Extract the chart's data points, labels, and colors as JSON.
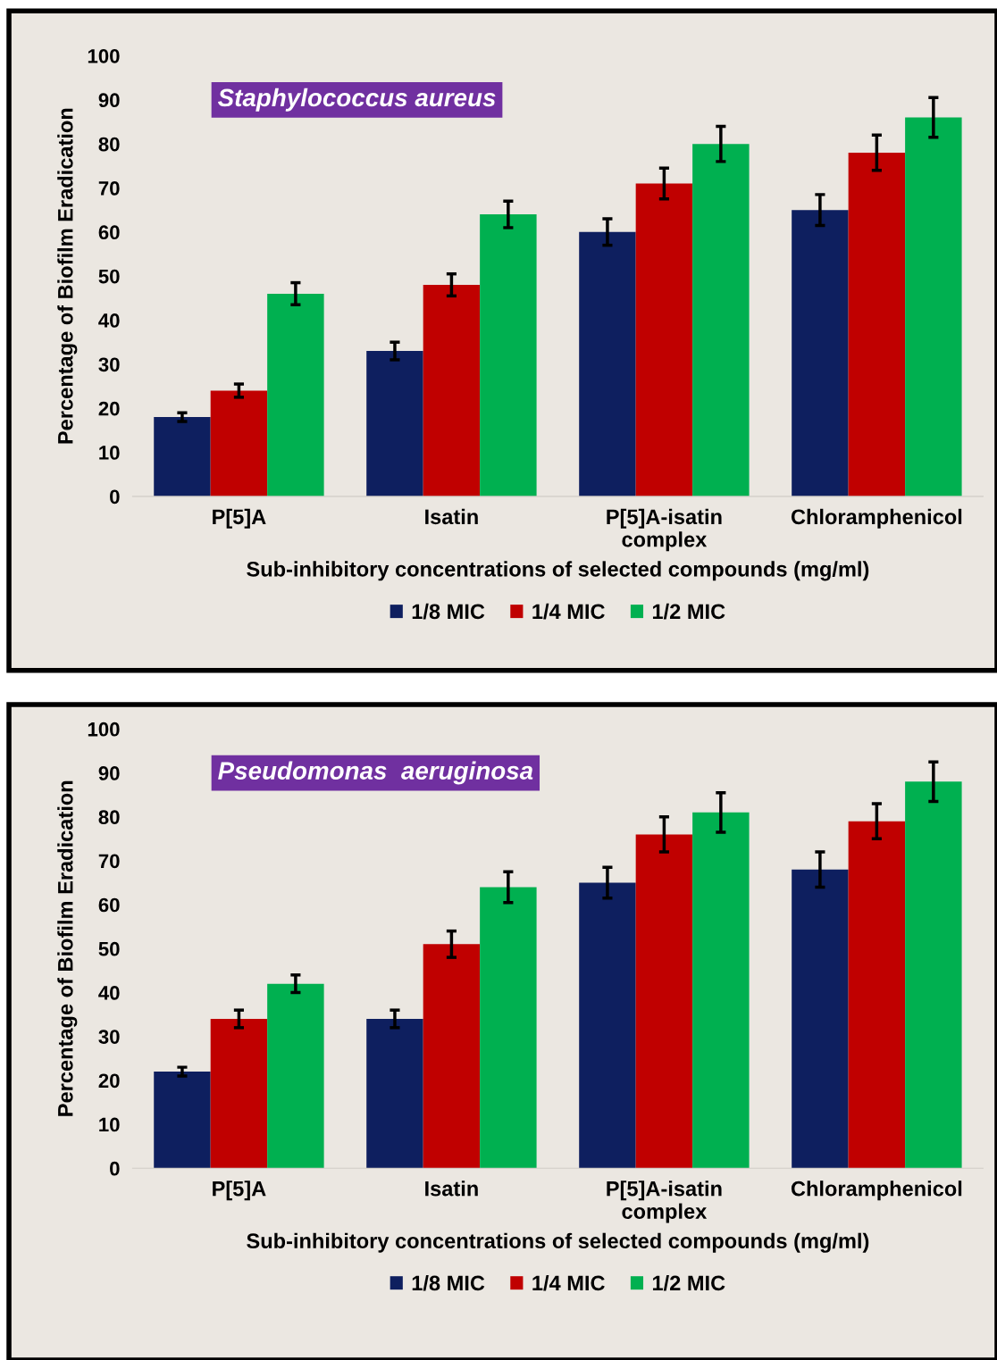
{
  "chart_data": [
    {
      "type": "bar",
      "title": "Staphylococcus aureus",
      "xlabel": "Sub-inhibitory concentrations of selected compounds (mg/ml)",
      "ylabel": "Percentage of Biofilm Eradication",
      "categories": [
        "P[5]A",
        "Isatin",
        "P[5]A-isatin\ncomplex",
        "Chloramphenicol"
      ],
      "series": [
        {
          "name": "1/8 MIC",
          "color": "#0e1f5f",
          "values": [
            18,
            33,
            60,
            65
          ],
          "errors": [
            1,
            2,
            3,
            3.5
          ]
        },
        {
          "name": "1/4 MIC",
          "color": "#c00000",
          "values": [
            24,
            48,
            71,
            78
          ],
          "errors": [
            1.5,
            2.5,
            3.5,
            4
          ]
        },
        {
          "name": "1/2 MIC",
          "color": "#00b050",
          "values": [
            46,
            64,
            80,
            86
          ],
          "errors": [
            2.5,
            3,
            4,
            4.5
          ]
        }
      ],
      "ylim": [
        0,
        100
      ],
      "yticks": [
        0,
        10,
        20,
        30,
        40,
        50,
        60,
        70,
        80,
        90,
        100
      ],
      "grid": false,
      "legend": "bottom"
    },
    {
      "type": "bar",
      "title": "Pseudomonas  aeruginosa",
      "xlabel": "Sub-inhibitory concentrations of selected compounds (mg/ml)",
      "ylabel": "Percentage of Biofilm Eradication",
      "categories": [
        "P[5]A",
        "Isatin",
        "P[5]A-isatin\ncomplex",
        "Chloramphenicol"
      ],
      "series": [
        {
          "name": "1/8 MIC",
          "color": "#0e1f5f",
          "values": [
            22,
            34,
            65,
            68
          ],
          "errors": [
            1,
            2,
            3.5,
            4
          ]
        },
        {
          "name": "1/4 MIC",
          "color": "#c00000",
          "values": [
            34,
            51,
            76,
            79
          ],
          "errors": [
            2,
            3,
            4,
            4
          ]
        },
        {
          "name": "1/2 MIC",
          "color": "#00b050",
          "values": [
            42,
            64,
            81,
            88
          ],
          "errors": [
            2,
            3.5,
            4.5,
            4.5
          ]
        }
      ],
      "ylim": [
        0,
        100
      ],
      "yticks": [
        0,
        10,
        20,
        30,
        40,
        50,
        60,
        70,
        80,
        90,
        100
      ],
      "grid": false,
      "legend": "bottom"
    }
  ]
}
